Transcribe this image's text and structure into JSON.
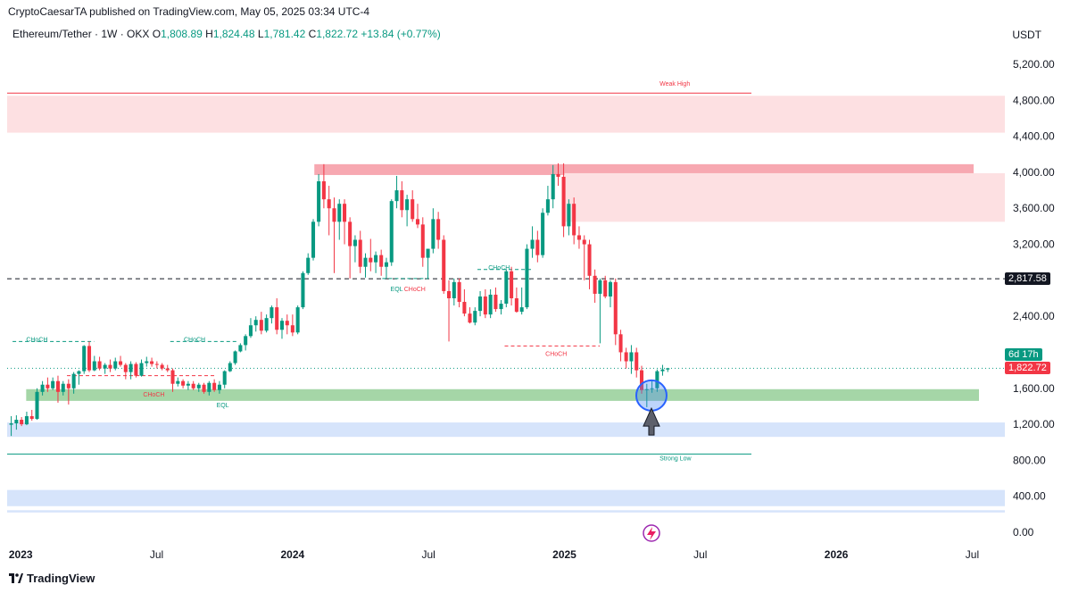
{
  "header": {
    "publisher_line": "CryptoCaesarTA published on TradingView.com, May 05, 2025 03:34 UTC-4",
    "symbol": "Ethereum/Tether · 1W · OKX",
    "open_label": "O",
    "open": "1,808.89",
    "high_label": "H",
    "high": "1,824.48",
    "low_label": "L",
    "low": "1,781.42",
    "close_label": "C",
    "close": "1,822.72",
    "change": "+13.84 (+0.77%)",
    "currency": "USDT"
  },
  "price_tags": {
    "level": "2,817.58",
    "countdown": "6d 17h",
    "last": "1,822.72"
  },
  "footer": {
    "brand": "TradingView"
  },
  "colors": {
    "up": "#089981",
    "down": "#f23645",
    "supply_zone": "#fde0e2",
    "supply_strong": "#f7a8b1",
    "demand_zone": "#a5d6a7",
    "blue_zone": "#d6e4fb"
  },
  "chart_data": {
    "type": "candlestick",
    "y_tick_labels": [
      "5,200.00",
      "4,800.00",
      "4,400.00",
      "4,000.00",
      "3,600.00",
      "3,200.00",
      "2,800.00",
      "2,400.00",
      "2,000.00",
      "1,600.00",
      "1,200.00",
      "800.00",
      "400.00",
      "0.00"
    ],
    "y_ticks": [
      5200,
      4800,
      4400,
      4000,
      3600,
      3200,
      2800,
      2400,
      2000,
      1600,
      1200,
      800,
      400,
      0
    ],
    "ylim": [
      0,
      5200
    ],
    "x_ticks": [
      {
        "label": "2023",
        "t": 2023.0
      },
      {
        "label": "Jul",
        "t": 2023.5
      },
      {
        "label": "2024",
        "t": 2024.0
      },
      {
        "label": "Jul",
        "t": 2024.5
      },
      {
        "label": "2025",
        "t": 2025.0
      },
      {
        "label": "Jul",
        "t": 2025.5
      },
      {
        "label": "2026",
        "t": 2026.0
      },
      {
        "label": "Jul",
        "t": 2026.5
      }
    ],
    "xlim": [
      2022.95,
      2026.62
    ],
    "close_level": 1822.72,
    "key_level": 2817.58,
    "zones": [
      {
        "type": "supply",
        "from": 4440,
        "to": 4850
      },
      {
        "type": "supply-strong",
        "from": 3970,
        "to": 4090
      },
      {
        "type": "supply",
        "from": 3450,
        "to": 3990
      },
      {
        "type": "demand",
        "from": 1460,
        "to": 1590
      },
      {
        "type": "blue",
        "from": 1060,
        "to": 1220
      },
      {
        "type": "blue",
        "from": 290,
        "to": 470
      },
      {
        "type": "blue",
        "from": 220,
        "to": 245
      }
    ],
    "lines": [
      {
        "name": "Weak High",
        "price": 4880
      },
      {
        "name": "Strong Low",
        "price": 870
      }
    ],
    "annotations": [
      {
        "text": "Weak High",
        "t": 2025.35,
        "price": 4960,
        "color": "#f23645"
      },
      {
        "text": "Strong Low",
        "t": 2025.35,
        "price": 800,
        "color": "#089981"
      },
      {
        "text": "CHoCH",
        "t": 2023.02,
        "price": 2120,
        "color": "#089981"
      },
      {
        "text": "CHoCH",
        "t": 2023.6,
        "price": 2120,
        "color": "#089981"
      },
      {
        "text": "CHoCH",
        "t": 2023.45,
        "price": 1510,
        "color": "#f23645"
      },
      {
        "text": "EQL",
        "t": 2023.72,
        "price": 1390,
        "color": "#089981"
      },
      {
        "text": "EQL",
        "t": 2024.36,
        "price": 2680,
        "color": "#089981"
      },
      {
        "text": "CHoCH",
        "t": 2024.41,
        "price": 2680,
        "color": "#f23645"
      },
      {
        "text": "CHoCH",
        "t": 2024.72,
        "price": 2920,
        "color": "#089981"
      },
      {
        "text": "CHoCH",
        "t": 2024.93,
        "price": 1960,
        "color": "#f23645"
      }
    ],
    "candles": [
      {
        "t": 2022.965,
        "o": 1195,
        "h": 1290,
        "l": 1070,
        "c": 1210
      },
      {
        "t": 2022.984,
        "o": 1210,
        "h": 1300,
        "l": 1140,
        "c": 1250
      },
      {
        "t": 2023.003,
        "o": 1250,
        "h": 1280,
        "l": 1180,
        "c": 1200
      },
      {
        "t": 2023.022,
        "o": 1200,
        "h": 1340,
        "l": 1190,
        "c": 1290
      },
      {
        "t": 2023.041,
        "o": 1290,
        "h": 1360,
        "l": 1240,
        "c": 1260
      },
      {
        "t": 2023.06,
        "o": 1260,
        "h": 1600,
        "l": 1250,
        "c": 1560
      },
      {
        "t": 2023.08,
        "o": 1560,
        "h": 1680,
        "l": 1520,
        "c": 1640
      },
      {
        "t": 2023.099,
        "o": 1640,
        "h": 1720,
        "l": 1560,
        "c": 1600
      },
      {
        "t": 2023.118,
        "o": 1600,
        "h": 1720,
        "l": 1580,
        "c": 1680
      },
      {
        "t": 2023.137,
        "o": 1680,
        "h": 1740,
        "l": 1440,
        "c": 1560
      },
      {
        "t": 2023.156,
        "o": 1560,
        "h": 1680,
        "l": 1520,
        "c": 1650
      },
      {
        "t": 2023.176,
        "o": 1650,
        "h": 1700,
        "l": 1420,
        "c": 1600
      },
      {
        "t": 2023.195,
        "o": 1600,
        "h": 1780,
        "l": 1540,
        "c": 1760
      },
      {
        "t": 2023.214,
        "o": 1760,
        "h": 1800,
        "l": 1640,
        "c": 1790
      },
      {
        "t": 2023.233,
        "o": 1790,
        "h": 2080,
        "l": 1760,
        "c": 2070
      },
      {
        "t": 2023.252,
        "o": 2070,
        "h": 2120,
        "l": 1780,
        "c": 1800
      },
      {
        "t": 2023.271,
        "o": 1800,
        "h": 1960,
        "l": 1790,
        "c": 1900
      },
      {
        "t": 2023.29,
        "o": 1900,
        "h": 1950,
        "l": 1800,
        "c": 1820
      },
      {
        "t": 2023.31,
        "o": 1820,
        "h": 1880,
        "l": 1760,
        "c": 1860
      },
      {
        "t": 2023.329,
        "o": 1860,
        "h": 1920,
        "l": 1780,
        "c": 1820
      },
      {
        "t": 2023.348,
        "o": 1820,
        "h": 1940,
        "l": 1800,
        "c": 1900
      },
      {
        "t": 2023.367,
        "o": 1900,
        "h": 1960,
        "l": 1840,
        "c": 1860
      },
      {
        "t": 2023.386,
        "o": 1860,
        "h": 1880,
        "l": 1700,
        "c": 1780
      },
      {
        "t": 2023.405,
        "o": 1780,
        "h": 1900,
        "l": 1700,
        "c": 1870
      },
      {
        "t": 2023.424,
        "o": 1870,
        "h": 1890,
        "l": 1720,
        "c": 1740
      },
      {
        "t": 2023.444,
        "o": 1740,
        "h": 1920,
        "l": 1730,
        "c": 1880
      },
      {
        "t": 2023.463,
        "o": 1880,
        "h": 1950,
        "l": 1840,
        "c": 1900
      },
      {
        "t": 2023.482,
        "o": 1900,
        "h": 1940,
        "l": 1840,
        "c": 1870
      },
      {
        "t": 2023.501,
        "o": 1870,
        "h": 1900,
        "l": 1820,
        "c": 1860
      },
      {
        "t": 2023.52,
        "o": 1860,
        "h": 1880,
        "l": 1800,
        "c": 1820
      },
      {
        "t": 2023.54,
        "o": 1820,
        "h": 1860,
        "l": 1780,
        "c": 1800
      },
      {
        "t": 2023.559,
        "o": 1800,
        "h": 1820,
        "l": 1560,
        "c": 1650
      },
      {
        "t": 2023.578,
        "o": 1650,
        "h": 1720,
        "l": 1620,
        "c": 1680
      },
      {
        "t": 2023.597,
        "o": 1680,
        "h": 1700,
        "l": 1600,
        "c": 1630
      },
      {
        "t": 2023.616,
        "o": 1630,
        "h": 1680,
        "l": 1580,
        "c": 1650
      },
      {
        "t": 2023.635,
        "o": 1650,
        "h": 1680,
        "l": 1580,
        "c": 1600
      },
      {
        "t": 2023.655,
        "o": 1600,
        "h": 1660,
        "l": 1560,
        "c": 1640
      },
      {
        "t": 2023.674,
        "o": 1640,
        "h": 1660,
        "l": 1540,
        "c": 1560
      },
      {
        "t": 2023.693,
        "o": 1560,
        "h": 1680,
        "l": 1520,
        "c": 1660
      },
      {
        "t": 2023.712,
        "o": 1660,
        "h": 1700,
        "l": 1560,
        "c": 1580
      },
      {
        "t": 2023.731,
        "o": 1580,
        "h": 1680,
        "l": 1540,
        "c": 1640
      },
      {
        "t": 2023.75,
        "o": 1640,
        "h": 1800,
        "l": 1600,
        "c": 1790
      },
      {
        "t": 2023.77,
        "o": 1790,
        "h": 1900,
        "l": 1780,
        "c": 1880
      },
      {
        "t": 2023.789,
        "o": 1880,
        "h": 2020,
        "l": 1860,
        "c": 2010
      },
      {
        "t": 2023.808,
        "o": 2010,
        "h": 2100,
        "l": 2000,
        "c": 2080
      },
      {
        "t": 2023.827,
        "o": 2080,
        "h": 2200,
        "l": 2020,
        "c": 2180
      },
      {
        "t": 2023.846,
        "o": 2180,
        "h": 2380,
        "l": 2160,
        "c": 2300
      },
      {
        "t": 2023.865,
        "o": 2300,
        "h": 2400,
        "l": 2230,
        "c": 2360
      },
      {
        "t": 2023.885,
        "o": 2360,
        "h": 2450,
        "l": 2200,
        "c": 2240
      },
      {
        "t": 2023.904,
        "o": 2240,
        "h": 2420,
        "l": 2220,
        "c": 2380
      },
      {
        "t": 2023.923,
        "o": 2380,
        "h": 2520,
        "l": 2320,
        "c": 2500
      },
      {
        "t": 2023.942,
        "o": 2500,
        "h": 2600,
        "l": 2200,
        "c": 2250
      },
      {
        "t": 2023.961,
        "o": 2250,
        "h": 2380,
        "l": 2150,
        "c": 2350
      },
      {
        "t": 2023.98,
        "o": 2350,
        "h": 2420,
        "l": 2200,
        "c": 2300
      },
      {
        "t": 2024.0,
        "o": 2300,
        "h": 2420,
        "l": 2180,
        "c": 2220
      },
      {
        "t": 2024.019,
        "o": 2220,
        "h": 2520,
        "l": 2200,
        "c": 2500
      },
      {
        "t": 2024.038,
        "o": 2500,
        "h": 2900,
        "l": 2480,
        "c": 2880
      },
      {
        "t": 2024.057,
        "o": 2880,
        "h": 3100,
        "l": 2860,
        "c": 3050
      },
      {
        "t": 2024.076,
        "o": 3050,
        "h": 3480,
        "l": 3020,
        "c": 3450
      },
      {
        "t": 2024.096,
        "o": 3450,
        "h": 3980,
        "l": 3400,
        "c": 3900
      },
      {
        "t": 2024.115,
        "o": 3900,
        "h": 4090,
        "l": 3600,
        "c": 3700
      },
      {
        "t": 2024.134,
        "o": 3700,
        "h": 3850,
        "l": 3300,
        "c": 3600
      },
      {
        "t": 2024.153,
        "o": 3600,
        "h": 3720,
        "l": 2880,
        "c": 3450
      },
      {
        "t": 2024.172,
        "o": 3450,
        "h": 3700,
        "l": 3250,
        "c": 3650
      },
      {
        "t": 2024.191,
        "o": 3650,
        "h": 3700,
        "l": 3200,
        "c": 3450
      },
      {
        "t": 2024.211,
        "o": 3450,
        "h": 3500,
        "l": 2820,
        "c": 3180
      },
      {
        "t": 2024.23,
        "o": 3180,
        "h": 3300,
        "l": 3000,
        "c": 3250
      },
      {
        "t": 2024.249,
        "o": 3250,
        "h": 3350,
        "l": 2880,
        "c": 2950
      },
      {
        "t": 2024.268,
        "o": 2950,
        "h": 3100,
        "l": 2830,
        "c": 3050
      },
      {
        "t": 2024.287,
        "o": 3050,
        "h": 3260,
        "l": 2900,
        "c": 3000
      },
      {
        "t": 2024.306,
        "o": 3000,
        "h": 3120,
        "l": 2880,
        "c": 3080
      },
      {
        "t": 2024.326,
        "o": 3080,
        "h": 3140,
        "l": 2850,
        "c": 2950
      },
      {
        "t": 2024.345,
        "o": 2950,
        "h": 3050,
        "l": 2820,
        "c": 3000
      },
      {
        "t": 2024.364,
        "o": 3000,
        "h": 3700,
        "l": 2960,
        "c": 3680
      },
      {
        "t": 2024.383,
        "o": 3680,
        "h": 3960,
        "l": 3600,
        "c": 3800
      },
      {
        "t": 2024.402,
        "o": 3800,
        "h": 3900,
        "l": 3500,
        "c": 3580
      },
      {
        "t": 2024.421,
        "o": 3580,
        "h": 3750,
        "l": 3400,
        "c": 3700
      },
      {
        "t": 2024.441,
        "o": 3700,
        "h": 3800,
        "l": 3450,
        "c": 3480
      },
      {
        "t": 2024.46,
        "o": 3480,
        "h": 3650,
        "l": 3380,
        "c": 3420
      },
      {
        "t": 2024.479,
        "o": 3420,
        "h": 3500,
        "l": 2950,
        "c": 3050
      },
      {
        "t": 2024.498,
        "o": 3050,
        "h": 3150,
        "l": 2820,
        "c": 3150
      },
      {
        "t": 2024.517,
        "o": 3150,
        "h": 3600,
        "l": 3100,
        "c": 3480
      },
      {
        "t": 2024.536,
        "o": 3480,
        "h": 3560,
        "l": 3150,
        "c": 3250
      },
      {
        "t": 2024.556,
        "o": 3250,
        "h": 3300,
        "l": 2650,
        "c": 2680
      },
      {
        "t": 2024.575,
        "o": 2680,
        "h": 2800,
        "l": 2120,
        "c": 2600
      },
      {
        "t": 2024.594,
        "o": 2600,
        "h": 2820,
        "l": 2520,
        "c": 2780
      },
      {
        "t": 2024.613,
        "o": 2780,
        "h": 2820,
        "l": 2500,
        "c": 2560
      },
      {
        "t": 2024.632,
        "o": 2560,
        "h": 2700,
        "l": 2400,
        "c": 2430
      },
      {
        "t": 2024.652,
        "o": 2430,
        "h": 2500,
        "l": 2320,
        "c": 2330
      },
      {
        "t": 2024.671,
        "o": 2330,
        "h": 2500,
        "l": 2300,
        "c": 2460
      },
      {
        "t": 2024.69,
        "o": 2460,
        "h": 2680,
        "l": 2400,
        "c": 2620
      },
      {
        "t": 2024.709,
        "o": 2620,
        "h": 2700,
        "l": 2380,
        "c": 2420
      },
      {
        "t": 2024.728,
        "o": 2420,
        "h": 2700,
        "l": 2380,
        "c": 2640
      },
      {
        "t": 2024.747,
        "o": 2640,
        "h": 2720,
        "l": 2450,
        "c": 2480
      },
      {
        "t": 2024.767,
        "o": 2480,
        "h": 2580,
        "l": 2420,
        "c": 2540
      },
      {
        "t": 2024.786,
        "o": 2540,
        "h": 2920,
        "l": 2500,
        "c": 2900
      },
      {
        "t": 2024.805,
        "o": 2900,
        "h": 2950,
        "l": 2520,
        "c": 2600
      },
      {
        "t": 2024.824,
        "o": 2600,
        "h": 2720,
        "l": 2440,
        "c": 2450
      },
      {
        "t": 2024.843,
        "o": 2450,
        "h": 2720,
        "l": 2420,
        "c": 2500
      },
      {
        "t": 2024.862,
        "o": 2500,
        "h": 3200,
        "l": 2480,
        "c": 3150
      },
      {
        "t": 2024.882,
        "o": 3150,
        "h": 3400,
        "l": 3050,
        "c": 3250
      },
      {
        "t": 2024.901,
        "o": 3250,
        "h": 3350,
        "l": 3000,
        "c": 3080
      },
      {
        "t": 2024.92,
        "o": 3080,
        "h": 3600,
        "l": 3050,
        "c": 3550
      },
      {
        "t": 2024.939,
        "o": 3550,
        "h": 3850,
        "l": 3520,
        "c": 3700
      },
      {
        "t": 2024.958,
        "o": 3700,
        "h": 4080,
        "l": 3600,
        "c": 3980
      },
      {
        "t": 2024.977,
        "o": 3980,
        "h": 4100,
        "l": 3850,
        "c": 3950
      },
      {
        "t": 2024.997,
        "o": 3950,
        "h": 4100,
        "l": 3280,
        "c": 3400
      },
      {
        "t": 2025.016,
        "o": 3400,
        "h": 3700,
        "l": 3300,
        "c": 3650
      },
      {
        "t": 2025.035,
        "o": 3650,
        "h": 3720,
        "l": 3200,
        "c": 3300
      },
      {
        "t": 2025.054,
        "o": 3300,
        "h": 3400,
        "l": 3150,
        "c": 3250
      },
      {
        "t": 2025.073,
        "o": 3250,
        "h": 3300,
        "l": 2800,
        "c": 3200
      },
      {
        "t": 2025.092,
        "o": 3200,
        "h": 3250,
        "l": 2700,
        "c": 2850
      },
      {
        "t": 2025.112,
        "o": 2850,
        "h": 2920,
        "l": 2550,
        "c": 2650
      },
      {
        "t": 2025.131,
        "o": 2650,
        "h": 2820,
        "l": 2100,
        "c": 2800
      },
      {
        "t": 2025.15,
        "o": 2800,
        "h": 2850,
        "l": 2600,
        "c": 2620
      },
      {
        "t": 2025.169,
        "o": 2620,
        "h": 2800,
        "l": 2500,
        "c": 2780
      },
      {
        "t": 2025.188,
        "o": 2780,
        "h": 2820,
        "l": 2080,
        "c": 2200
      },
      {
        "t": 2025.207,
        "o": 2200,
        "h": 2250,
        "l": 1900,
        "c": 2000
      },
      {
        "t": 2025.227,
        "o": 2000,
        "h": 2050,
        "l": 1820,
        "c": 1900
      },
      {
        "t": 2025.246,
        "o": 1900,
        "h": 2080,
        "l": 1760,
        "c": 2000
      },
      {
        "t": 2025.265,
        "o": 2000,
        "h": 2050,
        "l": 1720,
        "c": 1800
      },
      {
        "t": 2025.284,
        "o": 1800,
        "h": 1850,
        "l": 1540,
        "c": 1580
      },
      {
        "t": 2025.303,
        "o": 1580,
        "h": 1650,
        "l": 1390,
        "c": 1590
      },
      {
        "t": 2025.322,
        "o": 1590,
        "h": 1680,
        "l": 1550,
        "c": 1600
      },
      {
        "t": 2025.341,
        "o": 1600,
        "h": 1810,
        "l": 1560,
        "c": 1790
      },
      {
        "t": 2025.361,
        "o": 1790,
        "h": 1860,
        "l": 1740,
        "c": 1809
      },
      {
        "t": 2025.38,
        "o": 1808.89,
        "h": 1824.48,
        "l": 1781.42,
        "c": 1822.72
      }
    ]
  }
}
